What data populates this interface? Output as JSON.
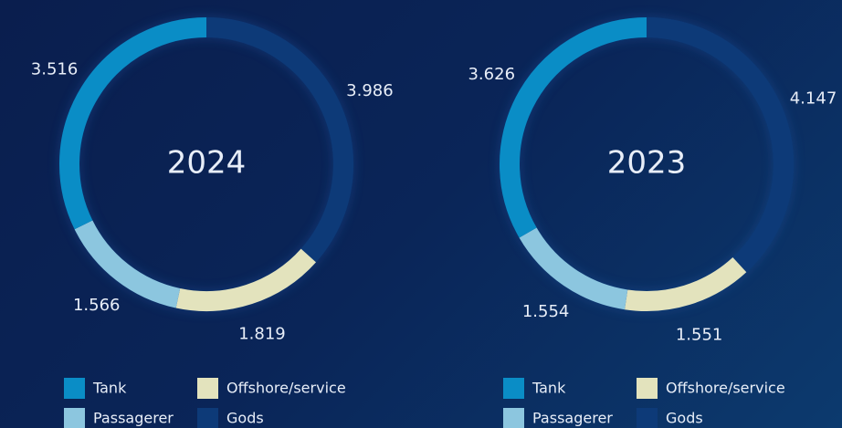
{
  "chart_data": [
    {
      "type": "pie",
      "title": "2024",
      "categories": [
        "Gods",
        "Offshore/service",
        "Passagerer",
        "Tank"
      ],
      "values": [
        3.986,
        1.819,
        1.566,
        3.516
      ],
      "colors": [
        "#0d3a78",
        "#e3e3bd",
        "#8cc6df",
        "#0a8dc6"
      ],
      "legend_order": [
        "Tank",
        "Offshore/service",
        "Passagerer",
        "Gods"
      ]
    },
    {
      "type": "pie",
      "title": "2023",
      "categories": [
        "Gods",
        "Offshore/service",
        "Passagerer",
        "Tank"
      ],
      "values": [
        4.147,
        1.551,
        1.554,
        3.626
      ],
      "colors": [
        "#0d3a78",
        "#e3e3bd",
        "#8cc6df",
        "#0a8dc6"
      ],
      "legend_order": [
        "Tank",
        "Offshore/service",
        "Passagerer",
        "Gods"
      ]
    }
  ]
}
